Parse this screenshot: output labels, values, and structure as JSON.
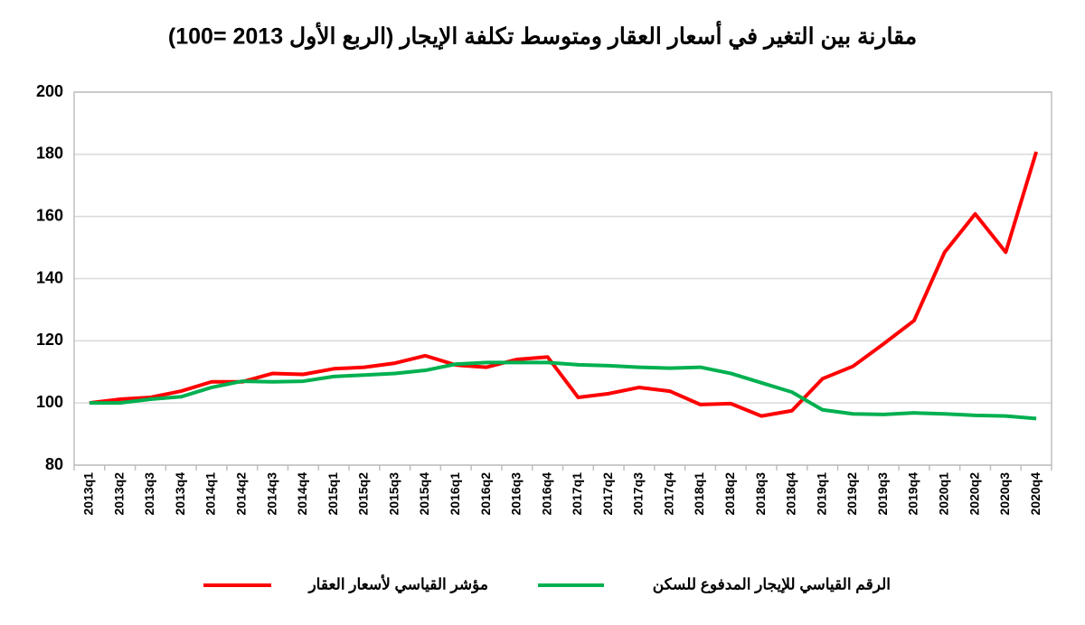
{
  "chart_data": {
    "type": "line",
    "title": "مقارنة بين التغير في أسعار العقار ومتوسط تكلفة الإيجار (الربع الأول 2013 =100)",
    "categories": [
      "2013q1",
      "2013q2",
      "2013q3",
      "2013q4",
      "2014q1",
      "2014q2",
      "2014q3",
      "2014q4",
      "2015q1",
      "2015q2",
      "2015q3",
      "2015q4",
      "2016q1",
      "2016q2",
      "2016q3",
      "2016q4",
      "2017q1",
      "2017q2",
      "2017q3",
      "2017q4",
      "2018q1",
      "2018q2",
      "2018q3",
      "2018q4",
      "2019q1",
      "2019q2",
      "2019q3",
      "2019q4",
      "2020q1",
      "2020q2",
      "2020q3",
      "2020q4"
    ],
    "series": [
      {
        "name": "مؤشر القياسي لأسعار العقار",
        "color": "#ff0000",
        "values": [
          100,
          101.2,
          101.8,
          103.8,
          106.8,
          106.8,
          109.5,
          109.2,
          111,
          111.5,
          112.8,
          115.2,
          112.2,
          111.5,
          114,
          114.8,
          101.8,
          103,
          105,
          103.8,
          99.5,
          99.8,
          95.8,
          97.5,
          107.8,
          111.8,
          119,
          126.5,
          148.5,
          160.8,
          148.5,
          180.8
        ]
      },
      {
        "name": "الرقم القياسي للإيجار المدفوع للسكن",
        "color": "#00b050",
        "values": [
          100,
          100,
          101.2,
          102,
          105,
          107,
          106.8,
          107,
          108.5,
          109,
          109.5,
          110.5,
          112.5,
          113,
          113,
          113,
          112.3,
          112,
          111.5,
          111.2,
          111.5,
          109.5,
          106.5,
          103.5,
          97.8,
          96.5,
          96.3,
          96.8,
          96.5,
          96,
          95.8,
          95
        ]
      }
    ],
    "ylim": [
      80,
      200
    ],
    "yticks": [
      80,
      100,
      120,
      140,
      160,
      180,
      200
    ],
    "grid": true
  }
}
